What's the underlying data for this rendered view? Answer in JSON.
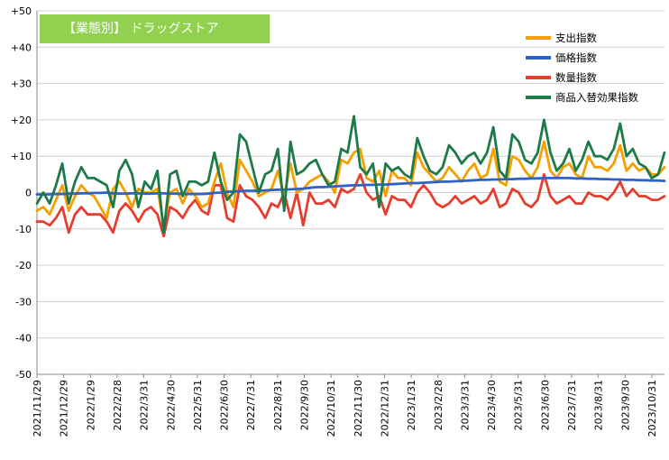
{
  "chart_data": {
    "type": "line",
    "title": "【業態別】 ドラッグストア",
    "ylim": [
      -50,
      50
    ],
    "y_ticks": [
      "+50",
      "+40",
      "+30",
      "+20",
      "+10",
      "0",
      "-10",
      "-20",
      "-30",
      "-40",
      "-50"
    ],
    "x_ticks": [
      "2021/11/29",
      "2021/12/29",
      "2022/1/29",
      "2022/2/28",
      "2022/3/31",
      "2022/4/30",
      "2022/5/31",
      "2022/6/30",
      "2022/7/31",
      "2022/8/31",
      "2022/9/30",
      "2022/10/31",
      "2022/11/30",
      "2022/12/31",
      "2023/1/31",
      "2023/2/28",
      "2023/3/31",
      "2023/4/30",
      "2023/5/31",
      "2023/6/30",
      "2023/7/31",
      "2023/8/31",
      "2023/9/30",
      "2023/10/31"
    ],
    "grid": true,
    "legend_position": "top-right",
    "series": [
      {
        "name": "支出指数",
        "color": "#f5a000",
        "values": [
          -5,
          -4,
          -6,
          -2,
          2,
          -5,
          -1,
          2,
          0,
          -1,
          -4,
          -7,
          1,
          3,
          0,
          -4,
          1,
          0,
          0,
          1,
          -9,
          0,
          1,
          -3,
          1,
          -1,
          -4,
          -3,
          3,
          8,
          0,
          -4,
          9,
          6,
          3,
          -1,
          0,
          1,
          6,
          -1,
          8,
          0,
          1,
          3,
          4,
          5,
          3,
          0,
          9,
          8,
          11,
          12,
          4,
          3,
          6,
          -1,
          6,
          4,
          4,
          2,
          11,
          7,
          5,
          3,
          4,
          7,
          5,
          3,
          6,
          8,
          4,
          5,
          12,
          3,
          2,
          10,
          9,
          6,
          4,
          7,
          14,
          6,
          4,
          7,
          8,
          5,
          4,
          10,
          7,
          7,
          6,
          8,
          13,
          6,
          8,
          6,
          7,
          5,
          5,
          7
        ]
      },
      {
        "name": "価格指数",
        "color": "#2e62c7",
        "values": [
          -0.5,
          -0.5,
          -0.5,
          -0.4,
          -0.4,
          -0.3,
          -0.3,
          -0.2,
          -0.2,
          -0.1,
          -0.1,
          0,
          -0.2,
          -0.3,
          -0.3,
          -0.2,
          -0.2,
          -0.3,
          -0.3,
          -0.2,
          -0.2,
          -0.3,
          -0.3,
          -0.4,
          -0.4,
          -0.4,
          -0.4,
          -0.3,
          -0.1,
          0,
          0.2,
          0.3,
          0.4,
          0.5,
          0.5,
          0.5,
          0.6,
          0.7,
          0.8,
          0.8,
          0.9,
          1,
          1.1,
          1.3,
          1.5,
          1.5,
          1.6,
          1.7,
          1.8,
          1.9,
          2,
          2,
          2.1,
          2.1,
          2.2,
          2.2,
          2.3,
          2.4,
          2.5,
          2.6,
          2.6,
          2.7,
          2.8,
          2.9,
          3,
          3,
          3.1,
          3.2,
          3.3,
          3.4,
          3.5,
          3.5,
          3.6,
          3.6,
          3.7,
          3.7,
          3.8,
          3.8,
          3.9,
          3.9,
          4,
          4,
          4,
          4,
          4,
          3.9,
          3.9,
          3.8,
          3.8,
          3.7,
          3.7,
          3.6,
          3.6,
          3.5,
          3.5,
          3.4,
          3.4,
          3.3,
          3.3,
          3.2
        ]
      },
      {
        "name": "数量指数",
        "color": "#e53e2e",
        "values": [
          -8,
          -8,
          -9,
          -7,
          -4,
          -11,
          -6,
          -4,
          -6,
          -6,
          -6,
          -8,
          -11,
          -5,
          -3,
          -5,
          -8,
          -5,
          -4,
          -6,
          -12,
          -4,
          -5,
          -7,
          -4,
          -2,
          -5,
          -6,
          2,
          2,
          -7,
          -8,
          2,
          -1,
          -2,
          -4,
          -7,
          -3,
          -4,
          0,
          -7,
          0,
          -9,
          0,
          -3,
          -3,
          -2,
          -4,
          1,
          0,
          1,
          5,
          0,
          -2,
          -1,
          -6,
          -1,
          -2,
          -2,
          -4,
          0,
          2,
          0,
          -3,
          -4,
          -3,
          -1,
          -3,
          -2,
          -1,
          -3,
          -2,
          1,
          -4,
          -3,
          1,
          0,
          -3,
          -4,
          -2,
          5,
          -1,
          -3,
          -2,
          -1,
          -3,
          -3,
          0,
          -1,
          -1,
          -2,
          0,
          3,
          -1,
          1,
          -1,
          -1,
          -2,
          -2,
          -1
        ]
      },
      {
        "name": "商品入替効果指数",
        "color": "#1f7a4a",
        "values": [
          -3,
          0,
          -3,
          2,
          8,
          -3,
          3,
          7,
          4,
          4,
          3,
          2,
          -4,
          6,
          9,
          5,
          -4,
          3,
          1,
          6,
          -11,
          5,
          6,
          -1,
          3,
          3,
          2,
          3,
          11,
          3,
          -2,
          0,
          16,
          14,
          7,
          0,
          5,
          6,
          12,
          -5,
          14,
          5,
          6,
          8,
          9,
          5,
          2,
          3,
          12,
          11,
          21,
          7,
          5,
          8,
          -4,
          8,
          6,
          7,
          5,
          4,
          15,
          10,
          6,
          5,
          7,
          13,
          11,
          8,
          10,
          11,
          8,
          11,
          18,
          6,
          4,
          16,
          14,
          9,
          8,
          11,
          20,
          11,
          6,
          8,
          12,
          6,
          9,
          14,
          10,
          10,
          9,
          12,
          19,
          10,
          12,
          8,
          7,
          4,
          5,
          11
        ]
      }
    ]
  }
}
